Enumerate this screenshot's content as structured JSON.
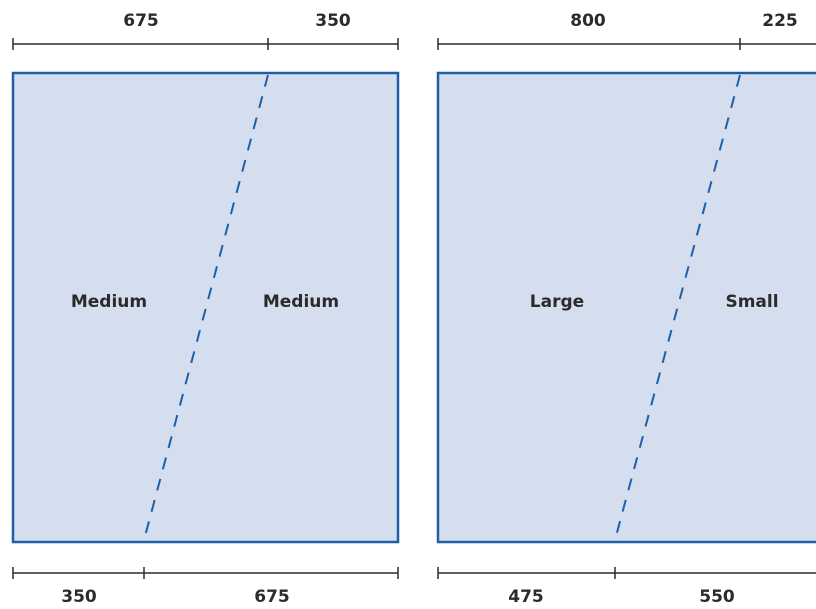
{
  "panels": [
    {
      "top_segments": [
        "675",
        "350"
      ],
      "bottom_segments": [
        "350",
        "675"
      ],
      "left_region": "Medium",
      "right_region": "Medium"
    },
    {
      "top_segments": [
        "800",
        "225"
      ],
      "bottom_segments": [
        "475",
        "550"
      ],
      "left_region": "Large",
      "right_region": "Small"
    }
  ],
  "colors": {
    "fill": "#d5deee",
    "outline": "#1f5fa8",
    "text": "#2b2b2b"
  }
}
